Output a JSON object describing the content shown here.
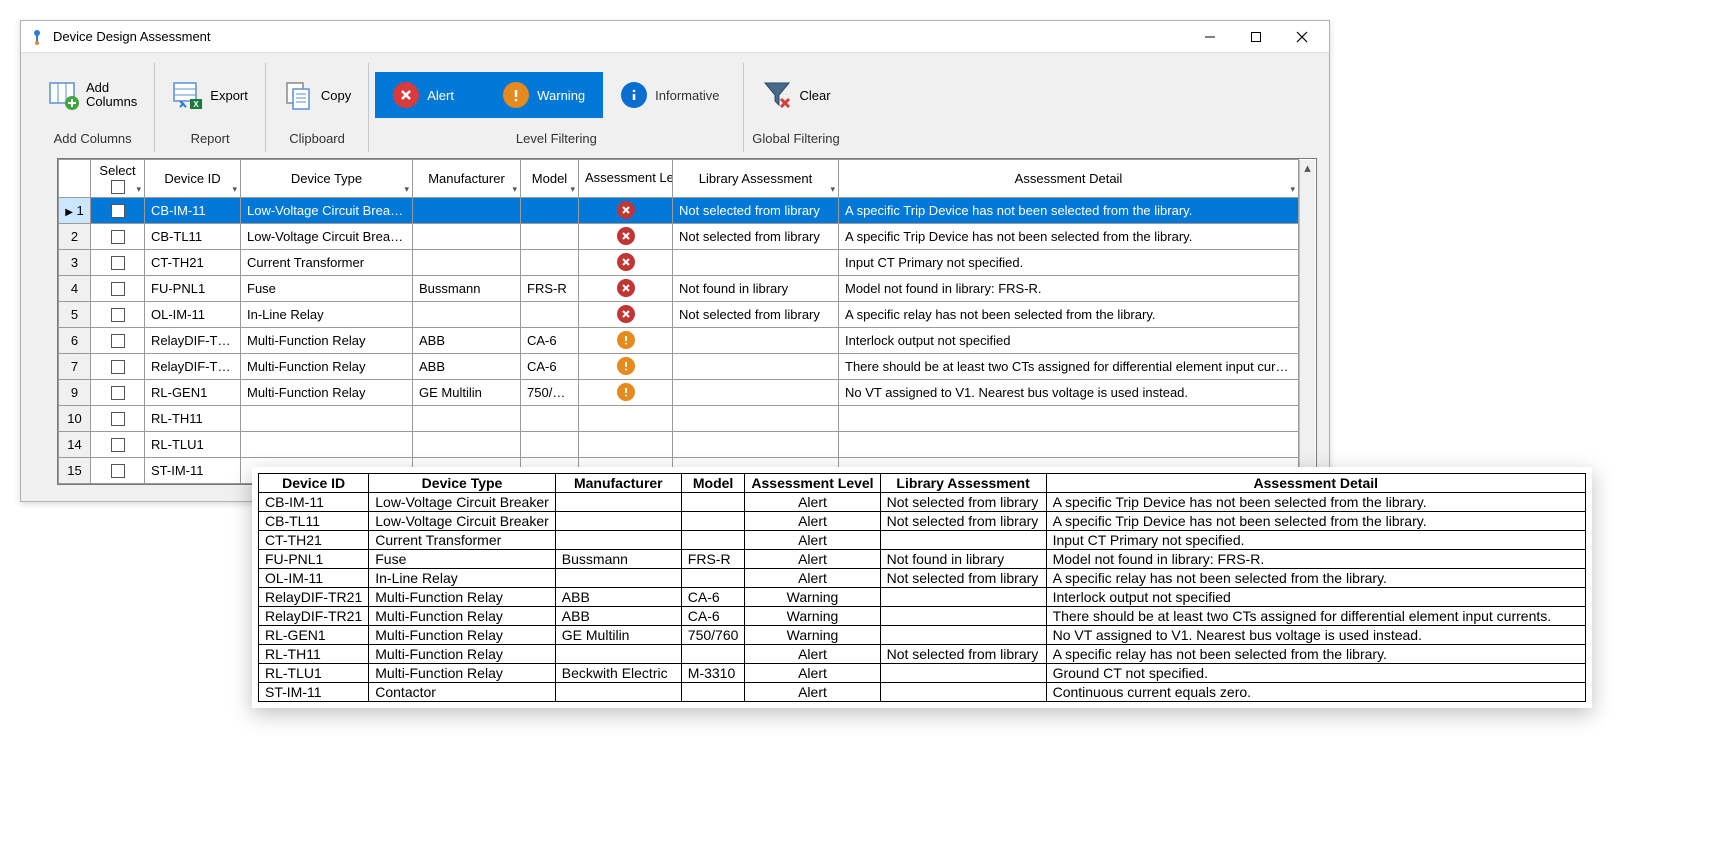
{
  "window": {
    "title": "Device Design Assessment"
  },
  "ribbon": {
    "addColumns": {
      "line1": "Add",
      "line2": "Columns",
      "groupLabel": "Add Columns"
    },
    "report": {
      "export": "Export",
      "groupLabel": "Report"
    },
    "clipboard": {
      "copy": "Copy",
      "groupLabel": "Clipboard"
    },
    "levelFiltering": {
      "alert": "Alert",
      "warning": "Warning",
      "informative": "Informative",
      "groupLabel": "Level Filtering"
    },
    "globalFiltering": {
      "clear": "Clear",
      "groupLabel": "Global Filtering"
    }
  },
  "gridHeaders": {
    "select": "Select",
    "deviceId": "Device ID",
    "deviceType": "Device Type",
    "manufacturer": "Manufacturer",
    "model": "Model",
    "assessmentLevel": "Assessment Level",
    "libraryAssessment": "Library Assessment",
    "assessmentDetail": "Assessment Detail"
  },
  "gridRows": [
    {
      "n": "1",
      "id": "CB-IM-11",
      "type": "Low-Voltage Circuit Breaker",
      "mfr": "",
      "model": "",
      "level": "alert",
      "lib": "Not selected from library",
      "detail": "A specific Trip Device has not been selected from the library.",
      "selected": true
    },
    {
      "n": "2",
      "id": "CB-TL11",
      "type": "Low-Voltage Circuit Breaker",
      "mfr": "",
      "model": "",
      "level": "alert",
      "lib": "Not selected from library",
      "detail": "A specific Trip Device has not been selected from the library."
    },
    {
      "n": "3",
      "id": "CT-TH21",
      "type": "Current Transformer",
      "mfr": "",
      "model": "",
      "level": "alert",
      "lib": "",
      "detail": "Input CT Primary not specified."
    },
    {
      "n": "4",
      "id": "FU-PNL1",
      "type": "Fuse",
      "mfr": "Bussmann",
      "model": "FRS-R",
      "level": "alert",
      "lib": "Not found in library",
      "detail": "Model not found in library: FRS-R."
    },
    {
      "n": "5",
      "id": "OL-IM-11",
      "type": "In-Line Relay",
      "mfr": "",
      "model": "",
      "level": "alert",
      "lib": "Not selected from library",
      "detail": "A specific relay has not been selected from the library."
    },
    {
      "n": "6",
      "id": "RelayDIF-TR21",
      "type": "Multi-Function Relay",
      "mfr": "ABB",
      "model": "CA-6",
      "level": "warn",
      "lib": "",
      "detail": "Interlock output not specified"
    },
    {
      "n": "7",
      "id": "RelayDIF-TR21",
      "type": "Multi-Function Relay",
      "mfr": "ABB",
      "model": "CA-6",
      "level": "warn",
      "lib": "",
      "detail": "There should be at least two CTs assigned for differential element input currents."
    },
    {
      "n": "9",
      "id": "RL-GEN1",
      "type": "Multi-Function Relay",
      "mfr": "GE Multilin",
      "model": "750/760",
      "level": "warn",
      "lib": "",
      "detail": "No VT assigned to V1. Nearest bus voltage is used instead."
    },
    {
      "n": "10",
      "id": "RL-TH11",
      "type": "",
      "mfr": "",
      "model": "",
      "level": "",
      "lib": "",
      "detail": ""
    },
    {
      "n": "14",
      "id": "RL-TLU1",
      "type": "",
      "mfr": "",
      "model": "",
      "level": "",
      "lib": "",
      "detail": ""
    },
    {
      "n": "15",
      "id": "ST-IM-11",
      "type": "",
      "mfr": "",
      "model": "",
      "level": "",
      "lib": "",
      "detail": ""
    }
  ],
  "overlayHeaders": {
    "deviceId": "Device ID",
    "deviceType": "Device Type",
    "manufacturer": "Manufacturer",
    "model": "Model",
    "assessmentLevel": "Assessment Level",
    "libraryAssessment": "Library Assessment",
    "assessmentDetail": "Assessment Detail"
  },
  "overlayRows": [
    {
      "id": "CB-IM-11",
      "type": "Low-Voltage Circuit Breaker",
      "mfr": "",
      "model": "",
      "level": "Alert",
      "lib": "Not selected from library",
      "detail": "A specific Trip Device has not been selected from the library."
    },
    {
      "id": "CB-TL11",
      "type": "Low-Voltage Circuit Breaker",
      "mfr": "",
      "model": "",
      "level": "Alert",
      "lib": "Not selected from library",
      "detail": "A specific Trip Device has not been selected from the library."
    },
    {
      "id": "CT-TH21",
      "type": "Current Transformer",
      "mfr": "",
      "model": "",
      "level": "Alert",
      "lib": "",
      "detail": "Input CT Primary not specified."
    },
    {
      "id": "FU-PNL1",
      "type": "Fuse",
      "mfr": "Bussmann",
      "model": "FRS-R",
      "level": "Alert",
      "lib": "Not found in library",
      "detail": "Model not found in library: FRS-R."
    },
    {
      "id": "OL-IM-11",
      "type": "In-Line Relay",
      "mfr": "",
      "model": "",
      "level": "Alert",
      "lib": "Not selected from library",
      "detail": "A specific relay has not been selected from the library."
    },
    {
      "id": "RelayDIF-TR21",
      "type": "Multi-Function Relay",
      "mfr": "ABB",
      "model": "CA-6",
      "level": "Warning",
      "lib": "",
      "detail": "Interlock output not specified"
    },
    {
      "id": "RelayDIF-TR21",
      "type": "Multi-Function Relay",
      "mfr": "ABB",
      "model": "CA-6",
      "level": "Warning",
      "lib": "",
      "detail": "There should be at least two CTs assigned for differential element input currents."
    },
    {
      "id": "RL-GEN1",
      "type": "Multi-Function Relay",
      "mfr": "GE Multilin",
      "model": "750/760",
      "level": "Warning",
      "lib": "",
      "detail": "No VT assigned to V1. Nearest bus voltage is used instead."
    },
    {
      "id": "RL-TH11",
      "type": "Multi-Function Relay",
      "mfr": "",
      "model": "",
      "level": "Alert",
      "lib": "Not selected from library",
      "detail": "A specific relay has not been selected from the library."
    },
    {
      "id": "RL-TLU1",
      "type": "Multi-Function Relay",
      "mfr": "Beckwith Electric",
      "model": "M-3310",
      "level": "Alert",
      "lib": "",
      "detail": "Ground CT not specified."
    },
    {
      "id": "ST-IM-11",
      "type": "Contactor",
      "mfr": "",
      "model": "",
      "level": "Alert",
      "lib": "",
      "detail": "Continuous current equals zero."
    }
  ],
  "colors": {
    "accent": "#0078d7",
    "alert": "#c23535",
    "warning": "#e48a1e",
    "info": "#0a6ed1"
  }
}
